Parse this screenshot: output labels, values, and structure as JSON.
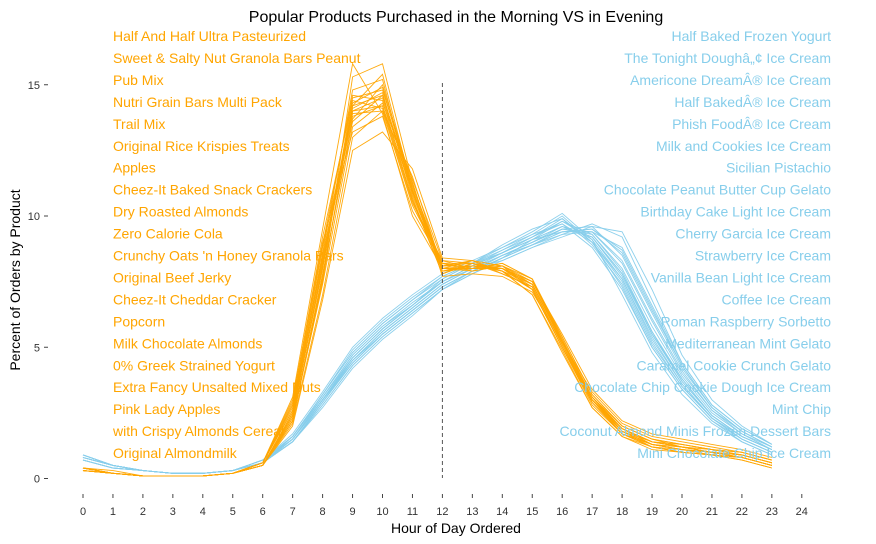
{
  "chart_data": {
    "type": "line",
    "title": "Popular Products Purchased in the Morning VS in Evening",
    "xlabel": "Hour of Day Ordered",
    "ylabel": "Percent of Orders by Product",
    "x_ticks": [
      0,
      1,
      2,
      3,
      4,
      5,
      6,
      7,
      8,
      9,
      10,
      11,
      12,
      13,
      14,
      15,
      16,
      17,
      18,
      19,
      20,
      21,
      22,
      23,
      24
    ],
    "y_ticks": [
      0,
      5,
      10,
      15
    ],
    "xlim": [
      0,
      24
    ],
    "ylim": [
      0,
      16.5
    ],
    "reference_line_x": 12,
    "grid": false,
    "colors": {
      "morning": "#FFA500",
      "evening": "#87CEEB",
      "reference": "#555555"
    },
    "morning_products": [
      "Half And Half Ultra Pasteurized",
      "Sweet & Salty Nut Granola Bars Peanut",
      "Pub Mix",
      "Nutri Grain Bars Multi Pack",
      "Trail Mix",
      "Original Rice Krispies Treats",
      "Apples",
      "Cheez-It Baked Snack Crackers",
      "Dry Roasted Almonds",
      "Zero Calorie Cola",
      "Crunchy Oats 'n Honey Granola Bars",
      "Original Beef Jerky",
      "Cheez-It Cheddar Cracker",
      "Popcorn",
      "Milk Chocolate Almonds",
      "0% Greek Strained Yogurt",
      "Extra Fancy Unsalted Mixed Nuts",
      "Pink Lady Apples",
      "with Crispy Almonds Cereal",
      "Original Almondmilk"
    ],
    "evening_products": [
      "Half Baked Frozen Yogurt",
      "The Tonight Doughâ„¢ Ice Cream",
      "Americone DreamÂ® Ice Cream",
      "Half BakedÂ® Ice Cream",
      "Phish FoodÂ® Ice Cream",
      "Milk and Cookies Ice Cream",
      "Sicilian Pistachio",
      "Chocolate Peanut Butter Cup Gelato",
      "Birthday Cake Light Ice Cream",
      "Cherry Garcia Ice Cream",
      "Strawberry Ice Cream",
      "Vanilla Bean Light Ice Cream",
      "Coffee Ice Cream",
      "Roman Raspberry Sorbetto",
      "Mediterranean Mint Gelato",
      "Caramel Cookie Crunch Gelato",
      "Chocolate Chip Cookie Dough Ice Cream",
      "Mint Chip",
      "Coconut Almond Minis Frozen Dessert Bars",
      "Mini Chocolate Chip Ice Cream"
    ],
    "x": [
      0,
      1,
      2,
      3,
      4,
      5,
      6,
      7,
      8,
      9,
      10,
      11,
      12,
      13,
      14,
      15,
      16,
      17,
      18,
      19,
      20,
      21,
      22,
      23
    ],
    "morning_series": [
      {
        "values": [
          0.4,
          0.2,
          0.1,
          0.1,
          0.1,
          0.2,
          0.5,
          2.2,
          7.5,
          14.2,
          15.4,
          11.0,
          8.0,
          8.1,
          7.9,
          7.2,
          5.0,
          3.0,
          1.9,
          1.4,
          1.3,
          1.1,
          0.9,
          0.6
        ]
      },
      {
        "values": [
          0.3,
          0.2,
          0.1,
          0.1,
          0.1,
          0.2,
          0.6,
          2.8,
          8.3,
          13.8,
          14.2,
          10.6,
          7.8,
          8.2,
          8.0,
          7.5,
          5.3,
          3.0,
          1.7,
          1.2,
          1.0,
          0.9,
          0.8,
          0.5
        ]
      },
      {
        "values": [
          0.4,
          0.2,
          0.1,
          0.1,
          0.1,
          0.2,
          0.5,
          2.5,
          8.0,
          14.5,
          14.8,
          11.2,
          8.1,
          8.3,
          7.8,
          7.3,
          5.1,
          2.9,
          1.8,
          1.3,
          1.1,
          1.0,
          0.8,
          0.5
        ]
      },
      {
        "values": [
          0.3,
          0.2,
          0.1,
          0.1,
          0.1,
          0.2,
          0.6,
          3.0,
          9.0,
          13.2,
          13.8,
          10.2,
          8.2,
          7.9,
          8.1,
          7.4,
          5.2,
          3.1,
          2.0,
          1.5,
          1.2,
          1.0,
          0.9,
          0.6
        ]
      },
      {
        "values": [
          0.4,
          0.2,
          0.1,
          0.1,
          0.1,
          0.2,
          0.5,
          2.1,
          7.0,
          13.0,
          14.0,
          11.5,
          8.0,
          8.0,
          8.2,
          7.6,
          5.4,
          3.2,
          2.0,
          1.5,
          1.3,
          1.1,
          1.0,
          0.7
        ]
      },
      {
        "values": [
          0.3,
          0.2,
          0.1,
          0.1,
          0.1,
          0.2,
          0.5,
          2.4,
          8.2,
          14.0,
          14.5,
          10.9,
          7.9,
          8.1,
          8.0,
          7.2,
          5.0,
          2.8,
          1.7,
          1.3,
          1.1,
          1.0,
          0.8,
          0.5
        ]
      },
      {
        "values": [
          0.3,
          0.2,
          0.1,
          0.1,
          0.1,
          0.2,
          0.6,
          2.9,
          9.2,
          14.4,
          14.1,
          10.5,
          8.3,
          8.2,
          7.9,
          7.0,
          4.9,
          2.7,
          1.6,
          1.1,
          1.0,
          0.9,
          0.7,
          0.4
        ]
      },
      {
        "values": [
          0.4,
          0.3,
          0.1,
          0.1,
          0.1,
          0.2,
          0.5,
          2.3,
          7.6,
          15.3,
          15.8,
          11.3,
          7.7,
          7.8,
          7.7,
          7.1,
          5.2,
          3.3,
          2.1,
          1.6,
          1.4,
          1.2,
          1.0,
          0.7
        ]
      },
      {
        "values": [
          0.3,
          0.2,
          0.1,
          0.1,
          0.1,
          0.2,
          0.5,
          2.0,
          6.8,
          12.5,
          13.2,
          11.8,
          8.4,
          8.3,
          8.1,
          7.5,
          5.5,
          3.4,
          2.2,
          1.7,
          1.5,
          1.3,
          1.1,
          0.8
        ]
      },
      {
        "values": [
          0.4,
          0.2,
          0.1,
          0.1,
          0.1,
          0.2,
          0.6,
          2.6,
          8.6,
          14.8,
          15.2,
          10.8,
          8.0,
          8.0,
          8.0,
          7.3,
          5.1,
          3.0,
          1.8,
          1.4,
          1.2,
          1.0,
          0.9,
          0.6
        ]
      },
      {
        "values": [
          0.3,
          0.2,
          0.1,
          0.1,
          0.1,
          0.2,
          0.5,
          2.2,
          7.8,
          13.6,
          14.6,
          11.1,
          8.1,
          8.2,
          7.9,
          7.4,
          5.3,
          3.1,
          1.9,
          1.3,
          1.1,
          1.0,
          0.8,
          0.5
        ]
      },
      {
        "values": [
          0.3,
          0.2,
          0.1,
          0.1,
          0.1,
          0.2,
          0.6,
          2.7,
          8.8,
          13.9,
          14.0,
          10.4,
          8.2,
          8.0,
          8.2,
          7.6,
          5.2,
          3.0,
          1.8,
          1.2,
          1.0,
          0.9,
          0.7,
          0.4
        ]
      },
      {
        "values": [
          0.4,
          0.2,
          0.1,
          0.1,
          0.1,
          0.2,
          0.5,
          2.4,
          8.1,
          14.3,
          14.9,
          11.0,
          7.9,
          8.1,
          8.1,
          7.2,
          5.0,
          2.9,
          1.7,
          1.3,
          1.2,
          1.0,
          0.9,
          0.6
        ]
      },
      {
        "values": [
          0.3,
          0.2,
          0.1,
          0.1,
          0.1,
          0.2,
          0.6,
          3.1,
          9.5,
          15.8,
          13.9,
          10.0,
          8.0,
          8.3,
          7.9,
          7.0,
          4.8,
          2.7,
          1.6,
          1.2,
          1.0,
          0.9,
          0.8,
          0.5
        ]
      },
      {
        "values": [
          0.4,
          0.2,
          0.1,
          0.1,
          0.1,
          0.2,
          0.5,
          2.3,
          7.4,
          13.4,
          14.3,
          11.4,
          8.3,
          8.0,
          8.0,
          7.5,
          5.4,
          3.2,
          2.0,
          1.5,
          1.3,
          1.1,
          1.0,
          0.7
        ]
      },
      {
        "values": [
          0.3,
          0.2,
          0.1,
          0.1,
          0.1,
          0.2,
          0.5,
          2.5,
          8.4,
          14.1,
          14.7,
          10.7,
          7.8,
          8.2,
          7.8,
          7.3,
          5.1,
          3.0,
          1.9,
          1.4,
          1.2,
          1.0,
          0.8,
          0.5
        ]
      },
      {
        "values": [
          0.4,
          0.2,
          0.1,
          0.1,
          0.1,
          0.2,
          0.6,
          2.8,
          8.9,
          14.6,
          14.4,
          10.6,
          8.1,
          8.1,
          8.0,
          7.4,
          5.2,
          3.1,
          1.8,
          1.3,
          1.1,
          1.0,
          0.9,
          0.6
        ]
      },
      {
        "values": [
          0.3,
          0.2,
          0.1,
          0.1,
          0.1,
          0.2,
          0.5,
          2.2,
          7.7,
          13.7,
          15.0,
          11.2,
          8.0,
          7.9,
          8.1,
          7.6,
          5.3,
          3.0,
          1.9,
          1.4,
          1.2,
          1.1,
          0.9,
          0.6
        ]
      },
      {
        "values": [
          0.3,
          0.2,
          0.1,
          0.1,
          0.1,
          0.2,
          0.6,
          2.6,
          8.5,
          14.0,
          14.2,
          10.9,
          8.2,
          8.2,
          7.9,
          7.2,
          5.0,
          2.9,
          1.7,
          1.2,
          1.1,
          0.9,
          0.8,
          0.5
        ]
      },
      {
        "values": [
          0.4,
          0.2,
          0.1,
          0.1,
          0.1,
          0.2,
          0.5,
          2.4,
          8.0,
          14.2,
          14.6,
          11.0,
          7.9,
          8.0,
          8.0,
          7.4,
          5.2,
          3.1,
          1.9,
          1.4,
          1.2,
          1.0,
          0.9,
          0.6
        ]
      }
    ],
    "evening_series": [
      {
        "values": [
          0.8,
          0.5,
          0.3,
          0.2,
          0.2,
          0.3,
          0.6,
          1.5,
          3.0,
          4.5,
          5.6,
          6.5,
          7.4,
          8.0,
          8.5,
          9.0,
          9.6,
          9.2,
          7.8,
          5.5,
          3.8,
          2.4,
          1.6,
          1.1
        ]
      },
      {
        "values": [
          0.9,
          0.5,
          0.3,
          0.2,
          0.2,
          0.3,
          0.7,
          1.6,
          3.2,
          4.8,
          5.9,
          6.8,
          7.6,
          8.2,
          8.6,
          9.2,
          9.9,
          9.0,
          7.5,
          5.2,
          3.5,
          2.3,
          1.5,
          1.0
        ]
      },
      {
        "values": [
          0.7,
          0.4,
          0.3,
          0.2,
          0.2,
          0.3,
          0.6,
          1.4,
          2.8,
          4.3,
          5.4,
          6.3,
          7.2,
          7.9,
          8.4,
          9.1,
          9.4,
          9.4,
          8.2,
          6.0,
          4.0,
          2.6,
          1.8,
          1.2
        ]
      },
      {
        "values": [
          0.8,
          0.5,
          0.3,
          0.2,
          0.2,
          0.3,
          0.6,
          1.5,
          3.1,
          4.6,
          5.7,
          6.6,
          7.5,
          8.1,
          8.7,
          9.3,
          9.7,
          8.8,
          7.2,
          5.0,
          3.4,
          2.2,
          1.5,
          1.0
        ]
      },
      {
        "values": [
          0.9,
          0.5,
          0.3,
          0.2,
          0.2,
          0.3,
          0.7,
          1.7,
          3.3,
          5.0,
          6.1,
          7.0,
          7.8,
          8.3,
          8.8,
          9.4,
          10.1,
          9.1,
          7.0,
          4.8,
          3.2,
          2.1,
          1.4,
          0.9
        ]
      },
      {
        "values": [
          0.8,
          0.5,
          0.3,
          0.2,
          0.2,
          0.3,
          0.6,
          1.5,
          3.0,
          4.4,
          5.5,
          6.4,
          7.3,
          7.9,
          8.5,
          8.9,
          9.5,
          9.6,
          8.5,
          6.3,
          4.2,
          2.7,
          1.8,
          1.2
        ]
      },
      {
        "values": [
          0.7,
          0.4,
          0.3,
          0.2,
          0.2,
          0.3,
          0.6,
          1.4,
          2.9,
          4.5,
          5.6,
          6.5,
          7.4,
          8.0,
          8.3,
          8.8,
          9.3,
          9.7,
          9.2,
          6.8,
          4.4,
          2.8,
          1.9,
          1.3
        ]
      },
      {
        "values": [
          0.8,
          0.5,
          0.3,
          0.2,
          0.2,
          0.3,
          0.6,
          1.6,
          3.1,
          4.7,
          5.8,
          6.7,
          7.5,
          8.1,
          8.6,
          9.1,
          9.8,
          9.3,
          7.9,
          5.6,
          3.7,
          2.4,
          1.6,
          1.1
        ]
      },
      {
        "values": [
          0.9,
          0.5,
          0.3,
          0.2,
          0.2,
          0.3,
          0.7,
          1.5,
          3.0,
          4.6,
          5.7,
          6.6,
          7.6,
          8.2,
          8.9,
          9.5,
          9.9,
          8.9,
          7.4,
          5.1,
          3.5,
          2.3,
          1.5,
          1.0
        ]
      },
      {
        "values": [
          0.8,
          0.5,
          0.3,
          0.2,
          0.2,
          0.3,
          0.6,
          1.5,
          3.0,
          4.5,
          5.5,
          6.4,
          7.3,
          7.9,
          8.4,
          8.9,
          9.4,
          9.5,
          8.6,
          6.4,
          4.3,
          2.7,
          1.8,
          1.2
        ]
      },
      {
        "values": [
          0.7,
          0.4,
          0.3,
          0.2,
          0.2,
          0.3,
          0.6,
          1.4,
          2.7,
          4.2,
          5.3,
          6.2,
          7.2,
          7.8,
          8.3,
          8.8,
          9.2,
          9.6,
          9.4,
          7.2,
          4.7,
          3.0,
          2.0,
          1.3
        ]
      },
      {
        "values": [
          0.8,
          0.5,
          0.3,
          0.2,
          0.2,
          0.3,
          0.6,
          1.6,
          3.2,
          4.8,
          5.9,
          6.8,
          7.7,
          8.2,
          8.7,
          9.2,
          9.7,
          9.0,
          7.6,
          5.4,
          3.6,
          2.3,
          1.6,
          1.1
        ]
      },
      {
        "values": [
          0.9,
          0.5,
          0.3,
          0.2,
          0.2,
          0.3,
          0.7,
          1.6,
          3.1,
          4.7,
          5.8,
          6.6,
          7.5,
          8.0,
          8.6,
          9.1,
          9.6,
          9.2,
          7.7,
          5.5,
          3.7,
          2.4,
          1.6,
          1.1
        ]
      },
      {
        "values": [
          0.8,
          0.5,
          0.3,
          0.2,
          0.2,
          0.3,
          0.6,
          1.5,
          2.9,
          4.4,
          5.5,
          6.4,
          7.3,
          7.9,
          8.5,
          9.0,
          9.5,
          9.3,
          8.0,
          5.8,
          3.9,
          2.5,
          1.7,
          1.1
        ]
      },
      {
        "values": [
          0.7,
          0.4,
          0.3,
          0.2,
          0.2,
          0.3,
          0.6,
          1.4,
          2.8,
          4.3,
          5.4,
          6.3,
          7.2,
          7.8,
          8.4,
          8.9,
          9.3,
          9.4,
          8.8,
          6.6,
          4.4,
          2.8,
          1.9,
          1.3
        ]
      },
      {
        "values": [
          0.8,
          0.5,
          0.3,
          0.2,
          0.2,
          0.3,
          0.6,
          1.5,
          3.0,
          4.6,
          5.7,
          6.6,
          7.5,
          8.1,
          8.6,
          9.2,
          9.8,
          9.1,
          7.6,
          5.3,
          3.6,
          2.3,
          1.5,
          1.0
        ]
      },
      {
        "values": [
          0.9,
          0.5,
          0.3,
          0.2,
          0.2,
          0.3,
          0.7,
          1.6,
          3.2,
          4.9,
          6.0,
          6.9,
          7.7,
          8.2,
          8.8,
          9.3,
          10.0,
          9.0,
          7.3,
          5.0,
          3.4,
          2.2,
          1.4,
          0.9
        ]
      },
      {
        "values": [
          0.8,
          0.5,
          0.3,
          0.2,
          0.2,
          0.3,
          0.6,
          1.5,
          3.0,
          4.5,
          5.6,
          6.5,
          7.4,
          8.0,
          8.5,
          9.0,
          9.5,
          9.4,
          8.3,
          6.1,
          4.1,
          2.6,
          1.7,
          1.2
        ]
      },
      {
        "values": [
          0.7,
          0.4,
          0.3,
          0.2,
          0.2,
          0.3,
          0.6,
          1.4,
          2.9,
          4.4,
          5.5,
          6.4,
          7.3,
          7.9,
          8.4,
          8.9,
          9.4,
          9.5,
          8.7,
          6.5,
          4.3,
          2.7,
          1.8,
          1.2
        ]
      },
      {
        "values": [
          0.8,
          0.5,
          0.3,
          0.2,
          0.2,
          0.3,
          0.6,
          1.5,
          3.0,
          4.6,
          5.7,
          6.6,
          7.5,
          8.1,
          8.6,
          9.1,
          9.6,
          9.2,
          7.8,
          5.6,
          3.8,
          2.4,
          1.6,
          1.1
        ]
      }
    ]
  }
}
